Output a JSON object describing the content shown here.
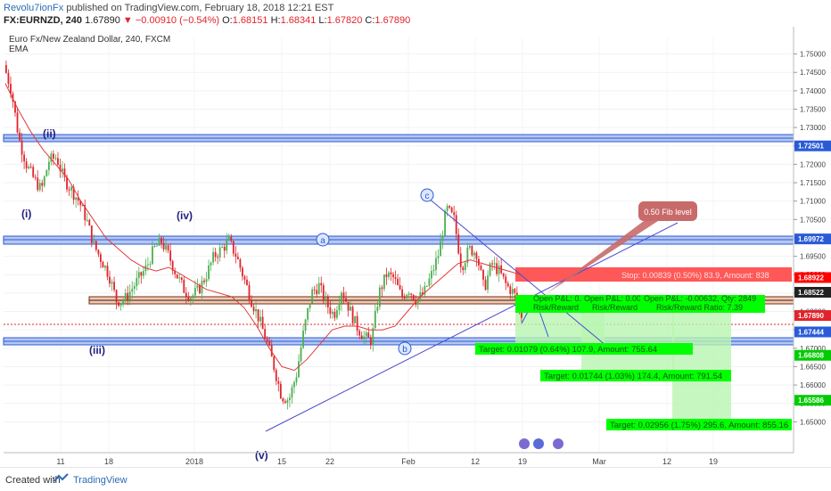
{
  "header": {
    "author": "Revolu7ionFx",
    "published": "published on TradingView.com, February 18, 2018 12:21 EST",
    "symbol": "FX:EURNZD, 240",
    "last": "1.67890",
    "change": "▼ −0.00910 (−0.54%)",
    "ohlc_o_label": "O:",
    "ohlc_o": "1.68151",
    "ohlc_h_label": "H:",
    "ohlc_h": "1.68341",
    "ohlc_l_label": "L:",
    "ohlc_l": "1.67820",
    "ohlc_c_label": "C:",
    "ohlc_c": "1.67890"
  },
  "legend": {
    "title": "Euro Fx/New Zealand Dollar, 240, FXCM",
    "indicator": "EMA"
  },
  "waves": {
    "ii": "(ii)",
    "i": "(i)",
    "iv": "(iv)",
    "iii": "(iii)",
    "v": "(v)",
    "a": "a",
    "b": "b",
    "c": "c"
  },
  "callout": "0.50 Fib level",
  "positions": {
    "stop": "Stop: 0.00839 (0.50%) 83.9, Amount: 838",
    "open1": "Open P&L: 0.00",
    "open2": "Open P&L: 0.00",
    "open3": "Open P&L: -0.00632, Qty: 2849",
    "rr1": "Risk/Reward",
    "rr2": "Risk/Reward",
    "rr3": "Risk/Reward Ratio: 7.39",
    "target1": "Target: 0.01079 (0.64%) 107.9, Amount: 755.64",
    "target2": "Target: 0.01744 (1.03%) 174.4, Amount: 791.54",
    "target3": "Target: 0.02956 (1.75%) 295.6, Amount: 855.16"
  },
  "colors": {
    "up": "#4caf50",
    "down": "#e0242b",
    "ema": "#e23b3b",
    "zone": "#2a5bd7",
    "target": "#00ff00",
    "stop": "#ff0000",
    "trend": "#4a4ad0"
  },
  "footer": {
    "created": "Created with",
    "brand": "TradingView"
  },
  "chart_data": {
    "type": "candlestick",
    "title": "Euro Fx/New Zealand Dollar, 240, FXCM",
    "ylim": [
      1.645,
      1.7545
    ],
    "y_ticks": [
      "1.75000",
      "1.74500",
      "1.74000",
      "1.73500",
      "1.73000",
      "1.72500",
      "1.72000",
      "1.71500",
      "1.71000",
      "1.70500",
      "1.70000",
      "1.69500",
      "1.69000",
      "1.68500",
      "1.68000",
      "1.67500",
      "1.67000",
      "1.66500",
      "1.66000",
      "1.65500",
      "1.65000"
    ],
    "x_ticks": [
      "11",
      "18",
      "2018",
      "15",
      "22",
      "Feb",
      "12",
      "19",
      "Mar",
      "12",
      "19"
    ],
    "price_levels": [
      {
        "value": 1.72501,
        "label": "1.72501",
        "color": "#2a5bd7"
      },
      {
        "value": 1.69972,
        "label": "1.69972",
        "color": "#2a5bd7"
      },
      {
        "value": 1.68922,
        "label": "1.68922",
        "color": "#ff0000"
      },
      {
        "value": 1.68522,
        "label": "1.68522",
        "color": "#222222"
      },
      {
        "value": 1.6789,
        "label": "1.67890",
        "color": "#e0242b"
      },
      {
        "value": 1.67444,
        "label": "1.67444",
        "color": "#2a5bd7"
      },
      {
        "value": 1.66808,
        "label": "1.66808",
        "color": "#00cc00"
      },
      {
        "value": 1.65586,
        "label": "1.65586",
        "color": "#00cc00"
      }
    ],
    "series": [
      {
        "name": "EMA",
        "values": [
          1.742,
          1.735,
          1.729,
          1.724,
          1.72,
          1.716,
          1.71,
          1.705,
          1.7,
          1.697,
          1.694,
          1.692,
          1.691,
          1.692,
          1.69,
          1.688,
          1.686,
          1.685,
          1.684,
          1.681,
          1.676,
          1.67,
          1.665,
          1.664,
          1.667,
          1.671,
          1.675,
          1.676,
          1.676,
          1.675,
          1.675,
          1.676,
          1.68,
          1.684,
          1.687,
          1.69,
          1.693,
          1.694,
          1.693,
          1.692,
          1.691,
          1.69
        ]
      }
    ],
    "price_path": [
      1.747,
      1.74,
      1.727,
      1.72,
      1.716,
      1.713,
      1.721,
      1.722,
      1.716,
      1.713,
      1.71,
      1.705,
      1.698,
      1.694,
      1.69,
      1.683,
      1.683,
      1.686,
      1.689,
      1.692,
      1.697,
      1.699,
      1.695,
      1.69,
      1.686,
      1.684,
      1.686,
      1.69,
      1.695,
      1.697,
      1.699,
      1.695,
      1.689,
      1.683,
      1.678,
      1.672,
      1.665,
      1.657,
      1.656,
      1.663,
      1.675,
      1.685,
      1.687,
      1.682,
      1.679,
      1.686,
      1.681,
      1.676,
      1.673,
      1.672,
      1.685,
      1.69,
      1.689,
      1.684,
      1.686,
      1.683,
      1.685,
      1.69,
      1.696,
      1.708,
      1.705,
      1.692,
      1.697,
      1.696,
      1.686,
      1.693,
      1.691,
      1.687,
      1.685,
      1.679
    ]
  }
}
